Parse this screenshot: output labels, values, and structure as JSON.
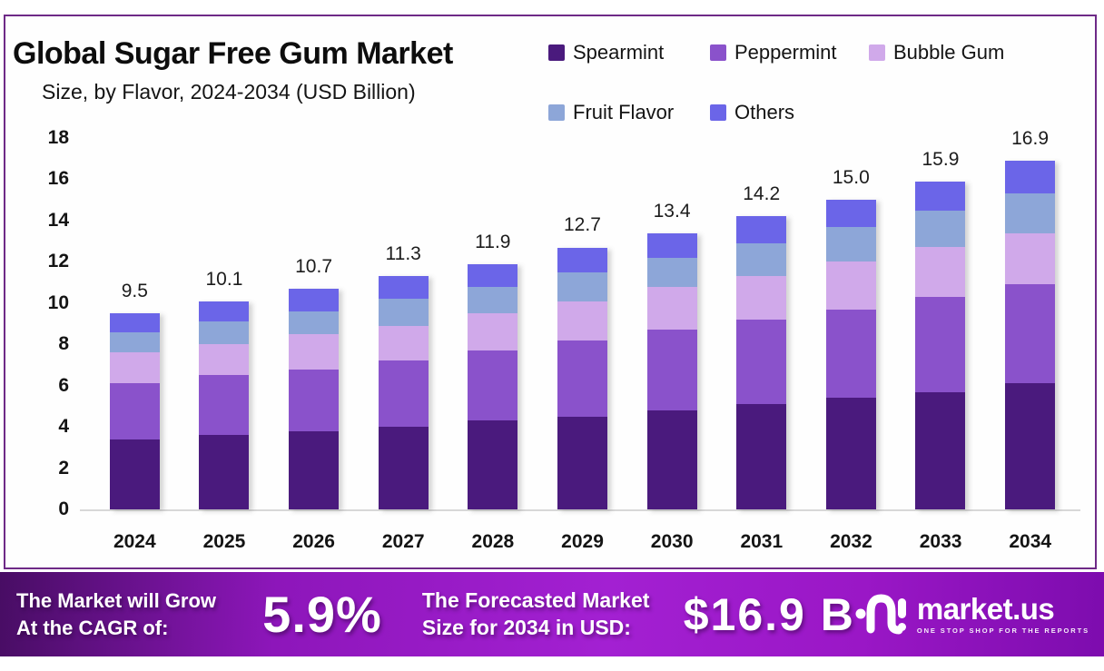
{
  "title": "Global Sugar Free Gum Market",
  "subtitle": "Size, by Flavor, 2024-2034 (USD Billion)",
  "chart_data": {
    "type": "bar",
    "stacked": true,
    "title": "Global Sugar Free Gum Market Size, by Flavor, 2024-2034 (USD Billion)",
    "categories": [
      "2024",
      "2025",
      "2026",
      "2027",
      "2028",
      "2029",
      "2030",
      "2031",
      "2032",
      "2033",
      "2034"
    ],
    "series": [
      {
        "name": "Spearmint",
        "color": "#4a1a7d",
        "values": [
          3.4,
          3.6,
          3.8,
          4.0,
          4.3,
          4.5,
          4.8,
          5.1,
          5.4,
          5.7,
          6.1
        ]
      },
      {
        "name": "Peppermint",
        "color": "#8a52cb",
        "values": [
          2.7,
          2.9,
          3.0,
          3.2,
          3.4,
          3.7,
          3.9,
          4.1,
          4.3,
          4.6,
          4.8
        ]
      },
      {
        "name": "Bubble Gum",
        "color": "#d0a9ea",
        "values": [
          1.5,
          1.5,
          1.7,
          1.7,
          1.8,
          1.9,
          2.1,
          2.1,
          2.3,
          2.4,
          2.5
        ]
      },
      {
        "name": "Fruit Flavor",
        "color": "#8da6d8",
        "values": [
          1.0,
          1.1,
          1.1,
          1.3,
          1.3,
          1.4,
          1.4,
          1.6,
          1.7,
          1.8,
          1.9
        ]
      },
      {
        "name": "Others",
        "color": "#6b65e8",
        "values": [
          0.9,
          1.0,
          1.1,
          1.1,
          1.1,
          1.2,
          1.2,
          1.3,
          1.3,
          1.4,
          1.6
        ]
      }
    ],
    "total_labels": [
      "9.5",
      "10.1",
      "10.7",
      "11.3",
      "11.9",
      "12.7",
      "13.4",
      "14.2",
      "15.0",
      "15.9",
      "16.9"
    ],
    "xlabel": "",
    "ylabel": "",
    "ylim": [
      0,
      18
    ],
    "yticks": [
      0,
      2,
      4,
      6,
      8,
      10,
      12,
      14,
      16,
      18
    ],
    "legend_position": "top-right",
    "grid": false
  },
  "footer": {
    "left_line1": "The Market will Grow",
    "left_line2": "At the CAGR of:",
    "cagr_value": "5.9%",
    "mid_line1": "The Forecasted Market",
    "mid_line2": "Size for 2034 in USD:",
    "forecast_value": "$16.9 B",
    "logo_text": "market.us",
    "logo_tagline": "ONE STOP SHOP FOR THE REPORTS"
  },
  "icons": {
    "logo_mark": "marketus-squiggle-icon"
  },
  "colors": {
    "border": "#6e2a87",
    "axis_line": "#d8d8d8",
    "text": "#111111",
    "footer_gradient_left": "#480d64",
    "footer_gradient_mid": "#a320d2",
    "footer_gradient_right": "#7d0cae"
  }
}
